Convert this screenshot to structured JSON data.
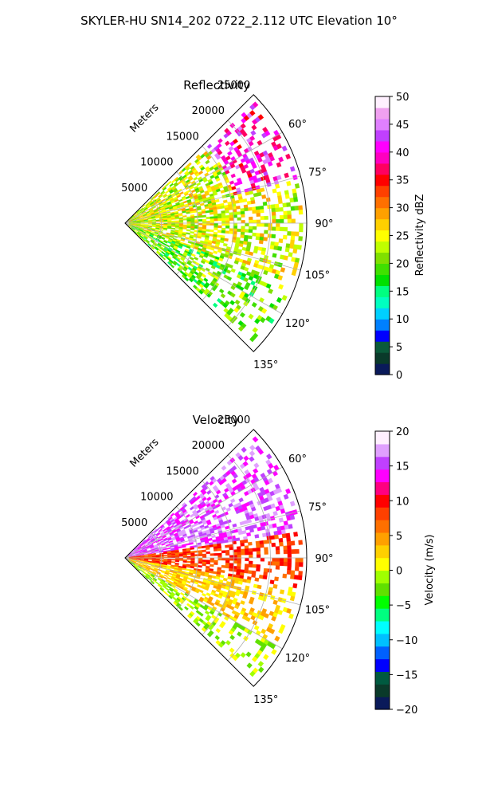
{
  "title": "SKYLER-HU  SN14_202  0722_2.112 UTC Elevation 10°",
  "chart_data": [
    {
      "type": "heatmap",
      "title": "Reflectivity",
      "projection": "polar-sector",
      "radial_axis_label": "Meters",
      "range_m": [
        0,
        25000
      ],
      "radial_ticks": [
        5000,
        10000,
        15000,
        20000,
        25000
      ],
      "radial_tick_labels": [
        "5000",
        "10000",
        "15000",
        "20000",
        "25000"
      ],
      "azimuth_range_deg": [
        45,
        135
      ],
      "azimuth_ticks": [
        60,
        75,
        90,
        105,
        120,
        135
      ],
      "azimuth_tick_labels": [
        "60°",
        "75°",
        "90°",
        "105°",
        "120°",
        "135°"
      ],
      "grid": true,
      "colorbar": {
        "label": "Reflectivity dBZ",
        "range": [
          0,
          50
        ],
        "ticks": [
          0,
          5,
          10,
          15,
          20,
          25,
          30,
          35,
          40,
          45,
          50
        ],
        "tick_labels": [
          "0",
          "5",
          "10",
          "15",
          "20",
          "25",
          "30",
          "35",
          "40",
          "45",
          "50"
        ]
      }
    },
    {
      "type": "heatmap",
      "title": "Velocity",
      "projection": "polar-sector",
      "radial_axis_label": "Meters",
      "range_m": [
        0,
        25000
      ],
      "radial_ticks": [
        5000,
        10000,
        15000,
        20000,
        25000
      ],
      "radial_tick_labels": [
        "5000",
        "10000",
        "15000",
        "20000",
        "25000"
      ],
      "azimuth_range_deg": [
        45,
        135
      ],
      "azimuth_ticks": [
        60,
        75,
        90,
        105,
        120,
        135
      ],
      "azimuth_tick_labels": [
        "60°",
        "75°",
        "90°",
        "105°",
        "120°",
        "135°"
      ],
      "grid": true,
      "colorbar": {
        "label": "Velocity (m/s)",
        "range": [
          -20,
          20
        ],
        "ticks": [
          -20,
          -15,
          -10,
          -5,
          0,
          5,
          10,
          15,
          20
        ],
        "tick_labels": [
          "−20",
          "−15",
          "−10",
          "−5",
          "0",
          "5",
          "10",
          "15",
          "20"
        ]
      }
    }
  ],
  "colors": {
    "reflectivity_scale": [
      "#0a1a5a",
      "#0a3a2a",
      "#0a5a3a",
      "#0000ff",
      "#0080ff",
      "#00d0ff",
      "#00ffc0",
      "#00ff80",
      "#00e000",
      "#40e000",
      "#80e000",
      "#c0ff00",
      "#ffff00",
      "#ffd000",
      "#ffa000",
      "#ff7000",
      "#ff4000",
      "#ff0000",
      "#ff0060",
      "#ff00c0",
      "#ff00ff",
      "#c040ff",
      "#e080ff",
      "#f0a0f0",
      "#fff0ff"
    ],
    "velocity_scale": [
      "#0a1a5a",
      "#0a3a2a",
      "#005a40",
      "#0000ff",
      "#0060ff",
      "#00c0ff",
      "#00ffff",
      "#00ff80",
      "#00ff00",
      "#60e000",
      "#a0ff00",
      "#ffff00",
      "#ffd000",
      "#ffa000",
      "#ff7000",
      "#ff4000",
      "#ff0000",
      "#ff0080",
      "#ff00ff",
      "#c040ff",
      "#e0a0ff",
      "#fff0ff"
    ]
  }
}
